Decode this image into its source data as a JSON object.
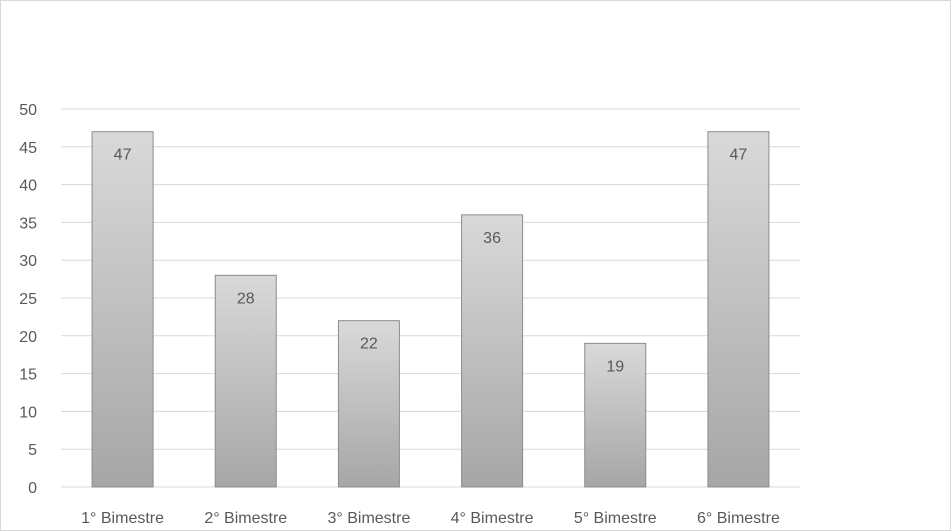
{
  "chart_data": {
    "type": "bar",
    "categories": [
      "1° Bimestre",
      "2° Bimestre",
      "3° Bimestre",
      "4° Bimestre",
      "5° Bimestre",
      "6° Bimestre"
    ],
    "values": [
      47,
      28,
      22,
      36,
      19,
      47
    ],
    "data_labels": [
      "47",
      "28",
      "22",
      "36",
      "19",
      "47"
    ],
    "ylim": [
      0,
      50
    ],
    "yticks": [
      "0",
      "5",
      "10",
      "15",
      "20",
      "25",
      "30",
      "35",
      "40",
      "45",
      "50"
    ],
    "title": "",
    "xlabel": "",
    "ylabel": "",
    "grid": true,
    "legend": "none",
    "colors": {
      "bar_top": "#d9d9d9",
      "bar_bottom": "#a6a6a6",
      "bar_border": "#8c8c8c",
      "grid": "#d9d9d9",
      "text": "#595959"
    }
  }
}
